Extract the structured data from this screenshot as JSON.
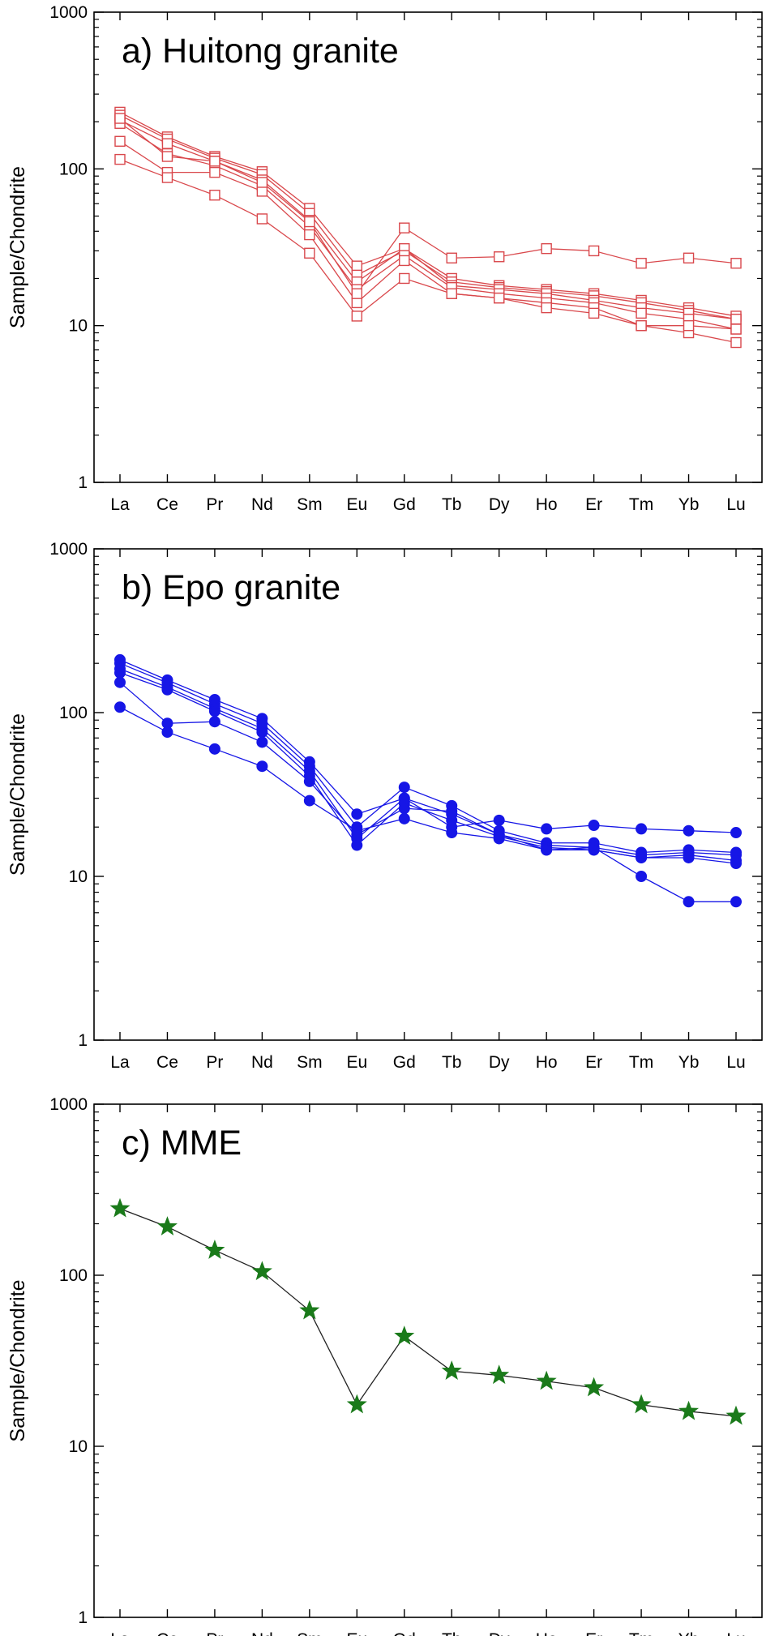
{
  "chart_data": [
    {
      "type": "line",
      "title": "a) Huitong granite",
      "ylabel": "Sample/Chondrite",
      "yscale": "log",
      "ylim": [
        1,
        1000
      ],
      "yticks": [
        1,
        10,
        100,
        1000
      ],
      "ytick_labels": [
        "1",
        "10",
        "100",
        "1000"
      ],
      "categories": [
        "La",
        "Ce",
        "Pr",
        "Nd",
        "Sm",
        "Eu",
        "Gd",
        "Tb",
        "Dy",
        "Ho",
        "Er",
        "Tm",
        "Yb",
        "Lu"
      ],
      "marker": "open-square",
      "color": "#d9484c",
      "series": [
        {
          "values": [
            230,
            160,
            120,
            96,
            56,
            24,
            31,
            20,
            18,
            17,
            16,
            14.5,
            13,
            11.5
          ]
        },
        {
          "values": [
            220,
            155,
            117,
            92,
            52,
            21,
            30,
            19,
            17.5,
            16.5,
            15.5,
            14,
            12.5,
            11
          ]
        },
        {
          "values": [
            205,
            145,
            112,
            85,
            47,
            19,
            31,
            18,
            17,
            16,
            14.5,
            13,
            12,
            11
          ]
        },
        {
          "values": [
            195,
            125,
            105,
            78,
            43,
            17,
            28,
            17.5,
            16,
            15,
            14,
            12,
            11,
            9.5
          ]
        },
        {
          "values": [
            150,
            95,
            95,
            72,
            38,
            14,
            26,
            16,
            15,
            14,
            13,
            10,
            9,
            7.8
          ]
        },
        {
          "values": [
            115,
            88,
            68,
            48,
            29,
            11.5,
            20,
            16,
            15,
            13,
            12,
            10,
            10,
            9.5
          ]
        },
        {
          "values": [
            210,
            120,
            112,
            82,
            46,
            16,
            42,
            27,
            27.5,
            31,
            30,
            25,
            27,
            25
          ]
        }
      ]
    },
    {
      "type": "line",
      "title": "b) Epo granite",
      "ylabel": "Sample/Chondrite",
      "yscale": "log",
      "ylim": [
        1,
        1000
      ],
      "yticks": [
        1,
        10,
        100,
        1000
      ],
      "ytick_labels": [
        "1",
        "10",
        "100",
        "1000"
      ],
      "categories": [
        "La",
        "Ce",
        "Pr",
        "Nd",
        "Sm",
        "Eu",
        "Gd",
        "Tb",
        "Dy",
        "Ho",
        "Er",
        "Tm",
        "Yb",
        "Lu"
      ],
      "marker": "filled-circle",
      "color": "#1616e6",
      "series": [
        {
          "values": [
            210,
            158,
            120,
            92,
            50,
            24,
            30,
            20,
            22,
            19.5,
            20.5,
            19.5,
            19,
            18.5
          ]
        },
        {
          "values": [
            200,
            152,
            113,
            86,
            47,
            20,
            35,
            27,
            19,
            16,
            16,
            14,
            14.5,
            14
          ]
        },
        {
          "values": [
            185,
            143,
            106,
            80,
            44,
            17,
            30,
            24,
            18,
            15.5,
            15,
            13.5,
            14,
            13.5
          ]
        },
        {
          "values": [
            175,
            138,
            102,
            76,
            41,
            15.5,
            28,
            22,
            17.5,
            15,
            14.5,
            13,
            13.5,
            12.5
          ]
        },
        {
          "values": [
            153,
            86,
            88,
            66,
            38,
            18,
            26,
            25,
            18,
            14.5,
            15,
            10,
            7,
            7
          ]
        },
        {
          "values": [
            108,
            76,
            60,
            47,
            29,
            19,
            22.5,
            18.5,
            17,
            14.5,
            14.5,
            13,
            13,
            12
          ]
        }
      ]
    },
    {
      "type": "line",
      "title": "c) MME",
      "ylabel": "Sample/Chondrite",
      "yscale": "log",
      "ylim": [
        1,
        1000
      ],
      "yticks": [
        1,
        10,
        100,
        1000
      ],
      "ytick_labels": [
        "1",
        "10",
        "100",
        "1000"
      ],
      "categories": [
        "La",
        "Ce",
        "Pr",
        "Nd",
        "Sm",
        "Eu",
        "Gd",
        "Tb",
        "Dy",
        "Ho",
        "Er",
        "Tm",
        "Yb",
        "Lu"
      ],
      "marker": "star",
      "color": "#1a7a1a",
      "line_color": "#222222",
      "series": [
        {
          "values": [
            245,
            192,
            140,
            105,
            62,
            17.5,
            44,
            27.5,
            26,
            24,
            22,
            17.5,
            16,
            15
          ]
        }
      ]
    }
  ]
}
